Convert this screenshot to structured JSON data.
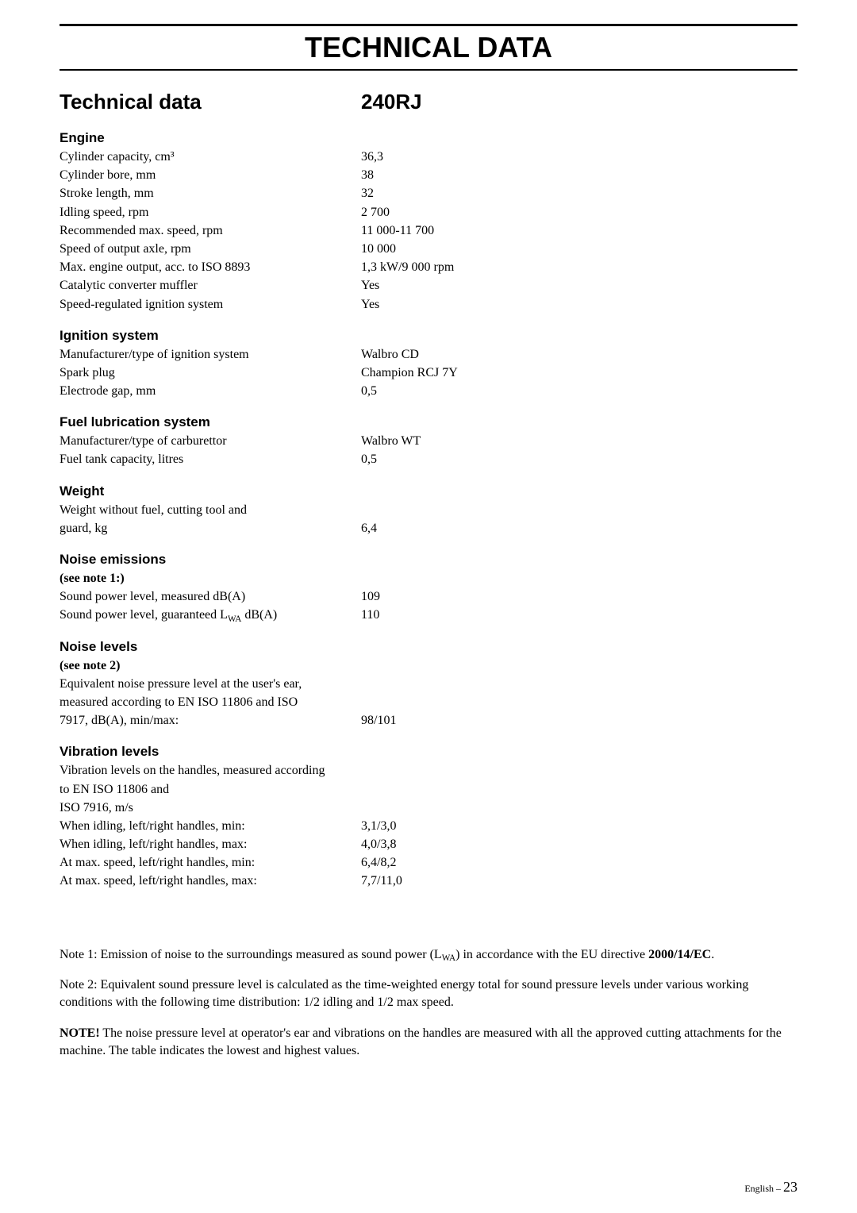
{
  "page_title": "TECHNICAL DATA",
  "subtitle_left": "Technical data",
  "subtitle_right": "240RJ",
  "sections": {
    "engine": {
      "header": "Engine",
      "rows": [
        {
          "label": "Cylinder capacity, cm³",
          "value": "36,3"
        },
        {
          "label": "Cylinder bore, mm",
          "value": "38"
        },
        {
          "label": "Stroke length, mm",
          "value": "32"
        },
        {
          "label": "Idling speed, rpm",
          "value": "2 700"
        },
        {
          "label": "Recommended max. speed, rpm",
          "value": "11 000-11 700"
        },
        {
          "label": "Speed of output axle, rpm",
          "value": "10 000"
        },
        {
          "label": "Max. engine output, acc. to ISO 8893",
          "value": "1,3 kW/9 000 rpm"
        },
        {
          "label": "Catalytic converter muffler",
          "value": "Yes"
        },
        {
          "label": "Speed-regulated ignition system",
          "value": "Yes"
        }
      ]
    },
    "ignition": {
      "header": "Ignition system",
      "rows": [
        {
          "label": "Manufacturer/type of ignition system",
          "value": "Walbro CD"
        },
        {
          "label": "Spark plug",
          "value": "Champion RCJ 7Y"
        },
        {
          "label": "Electrode gap, mm",
          "value": "0,5"
        }
      ]
    },
    "fuel": {
      "header": "Fuel lubrication system",
      "rows": [
        {
          "label": "Manufacturer/type of carburettor",
          "value": "Walbro WT"
        },
        {
          "label": "Fuel tank capacity, litres",
          "value": "0,5"
        }
      ]
    },
    "weight": {
      "header": "Weight",
      "multiline_label": "Weight without fuel, cutting tool and guard, kg",
      "value": "6,4"
    },
    "noise_emissions": {
      "header": "Noise emissions",
      "subnote": "(see note 1:)",
      "rows": [
        {
          "label": "Sound power level, measured dB(A)",
          "value": "109"
        },
        {
          "label_html": "Sound power level, guaranteed L<sub>WA</sub> dB(A)",
          "value": "110"
        }
      ]
    },
    "noise_levels": {
      "header": "Noise levels",
      "subnote": "(see note 2)",
      "multiline_label": "Equivalent noise pressure level at the user's ear, measured according to EN ISO 11806 and ISO 7917, dB(A), min/max:",
      "value": "98/101"
    },
    "vibration": {
      "header": "Vibration levels",
      "multiline_intro": "Vibration levels on the handles, measured according to EN ISO 11806 and\nISO 7916, m/s",
      "rows": [
        {
          "label": "When idling, left/right handles, min:",
          "value": "3,1/3,0"
        },
        {
          "label": "When idling, left/right handles, max:",
          "value": "4,0/3,8"
        },
        {
          "label": "At max. speed, left/right handles, min:",
          "value": "6,4/8,2"
        },
        {
          "label": "At max. speed, left/right handles, max:",
          "value": "7,7/11,0"
        }
      ]
    }
  },
  "notes": {
    "note1_prefix": "Note 1: Emission of noise to the surroundings measured as sound power (L",
    "note1_sub": "WA",
    "note1_mid": ") in accordance with the EU directive ",
    "note1_bold": "2000/14/EC",
    "note1_suffix": ".",
    "note2": "Note 2: Equivalent sound pressure level is calculated as the time-weighted energy total for sound pressure levels under various working conditions with the following time distribution: 1/2 idling and 1/2 max speed.",
    "note3_bold": "NOTE!",
    "note3_text": "  The noise pressure level at operator's ear and vibrations on the handles are measured with all the approved cutting attachments for the machine. The table indicates the lowest  and highest values."
  },
  "footer": {
    "lang": "English",
    "sep": " – ",
    "page": "23"
  }
}
